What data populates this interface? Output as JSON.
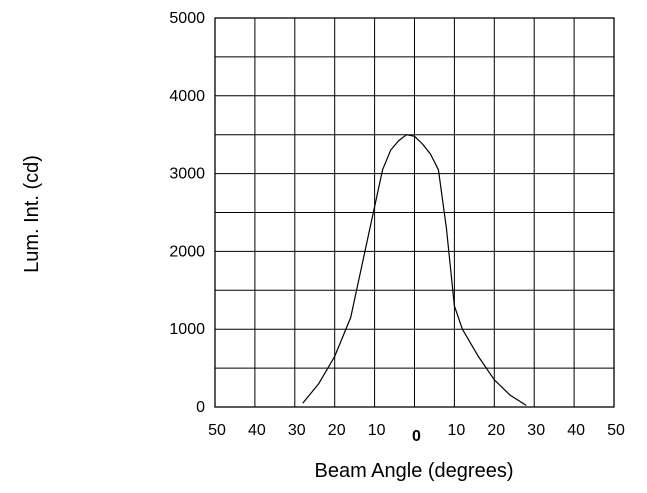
{
  "chart_data": {
    "type": "line",
    "xlabel": "Beam Angle (degrees)",
    "ylabel": "Lum. Int. (cd)",
    "xlim": [
      -50,
      50
    ],
    "ylim": [
      0,
      5000
    ],
    "x_ticks": [
      -50,
      -40,
      -30,
      -20,
      -10,
      0,
      10,
      20,
      30,
      40,
      50
    ],
    "x_tick_labels": [
      "50",
      "40",
      "30",
      "20",
      "10",
      "0",
      "10",
      "20",
      "30",
      "40",
      "50"
    ],
    "y_ticks": [
      0,
      1000,
      2000,
      3000,
      4000,
      5000
    ],
    "y_tick_labels": [
      "0",
      "1000",
      "2000",
      "3000",
      "4000",
      "5000"
    ],
    "y_gridlines": [
      0,
      500,
      1000,
      1500,
      2000,
      2500,
      3000,
      3500,
      4000,
      4500,
      5000
    ],
    "grid": true,
    "series": [
      {
        "x": [
          -28,
          -24,
          -20,
          -16,
          -12,
          -8,
          -6,
          -4,
          -2,
          0,
          2,
          4,
          6,
          8,
          10,
          12,
          16,
          20,
          24,
          28
        ],
        "y": [
          50,
          300,
          650,
          1150,
          2100,
          3050,
          3300,
          3420,
          3500,
          3480,
          3380,
          3250,
          3050,
          2300,
          1300,
          1000,
          650,
          350,
          150,
          20
        ]
      }
    ]
  }
}
